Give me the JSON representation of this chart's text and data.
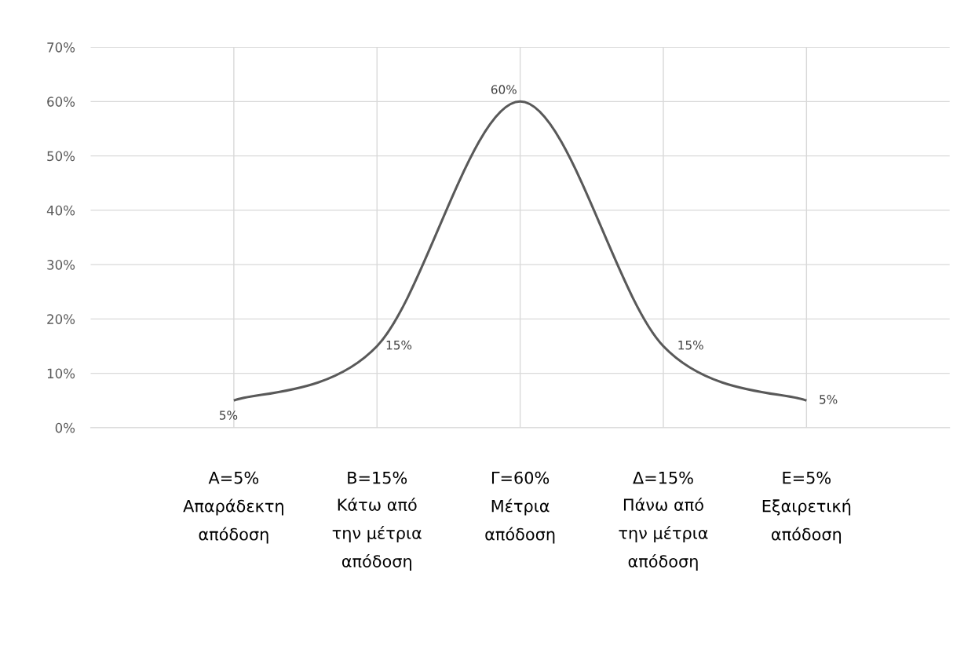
{
  "chart_data": {
    "type": "line",
    "categories": [
      "Α=5%\nΑπαράδεκτη\nαπόδοση",
      "Β=15%\nΚάτω από\nτην μέτρια\nαπόδοση",
      "Γ=60%\nΜέτρια\nαπόδοση",
      "Δ=15%\nΠάνω από\nτην μέτρια\nαπόδοση",
      "Ε=5%\nΕξαιρετική\nαπόδοση"
    ],
    "series": [
      {
        "color": "#595959",
        "values": [
          5,
          15,
          60,
          15,
          5
        ],
        "value_labels": [
          "5%",
          "15%",
          "60%",
          "15%",
          "5%"
        ]
      }
    ],
    "ylim": [
      0,
      70
    ],
    "yticks": [
      {
        "value": 0,
        "label": "0%"
      },
      {
        "value": 10,
        "label": "10%"
      },
      {
        "value": 20,
        "label": "20%"
      },
      {
        "value": 30,
        "label": "30%"
      },
      {
        "value": 40,
        "label": "40%"
      },
      {
        "value": 50,
        "label": "50%"
      },
      {
        "value": 60,
        "label": "60%"
      },
      {
        "value": 70,
        "label": "70%"
      }
    ],
    "grid": true,
    "marker": "none",
    "line_style": "solid"
  }
}
